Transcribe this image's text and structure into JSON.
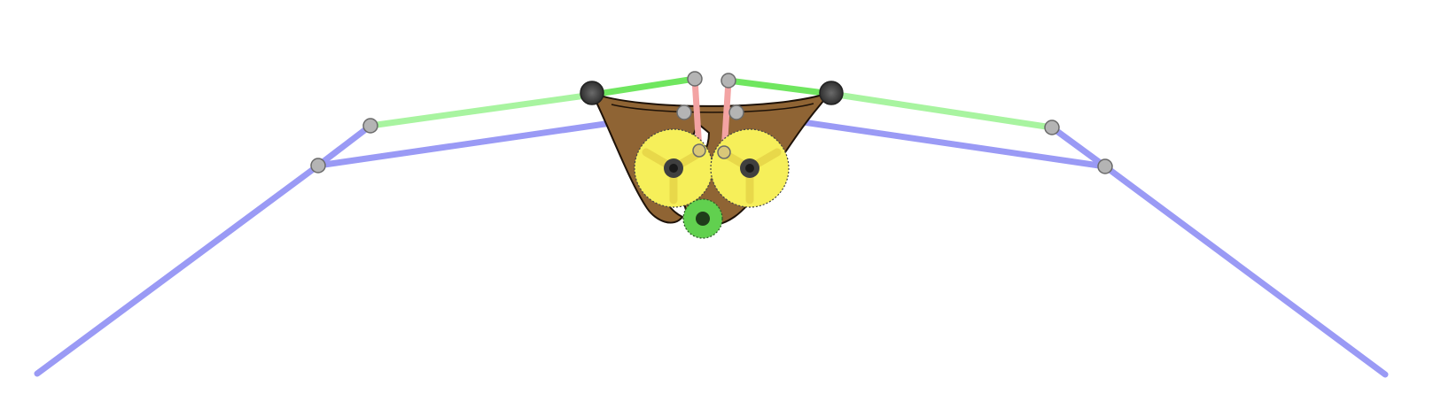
{
  "diagram": {
    "type": "linkage-mechanism",
    "colors": {
      "blue_link": "#9a9af5",
      "green_link": "#a8f4a0",
      "green_link_bright": "#6fe65f",
      "red_link": "#f3a3a3",
      "frame_fill": "#8f6434",
      "frame_stroke": "#1e1208",
      "big_gear": "#f6ef5a",
      "small_gear": "#61d04f",
      "joint_fill": "#b4b4b4",
      "pivot_dark": "#3f3f3f"
    },
    "components": {
      "links": [
        "blue-left-leg",
        "blue-left-arm",
        "blue-right-leg",
        "blue-right-arm",
        "green-left-link",
        "green-right-link",
        "red-left-rod",
        "red-right-rod"
      ],
      "gears": [
        "left-drive-gear",
        "right-drive-gear",
        "pinion-gear"
      ],
      "frame": "wooden-frame"
    }
  }
}
